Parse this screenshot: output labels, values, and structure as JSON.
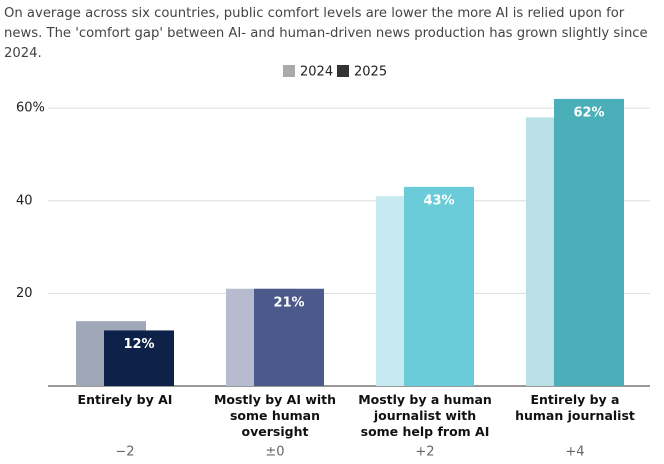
{
  "chart_data": {
    "type": "bar",
    "subtitle": "On average across six countries, public comfort levels are lower the more AI is relied upon for news. The 'comfort gap' between AI- and human-driven news production has grown slightly since 2024.",
    "categories": [
      "Entirely by AI",
      "Mostly by AI with some human oversight",
      "Mostly by a human journalist with some help from AI",
      "Entirely by a human journalist"
    ],
    "differences": [
      "−2",
      "±0",
      "+2",
      "+4"
    ],
    "series": [
      {
        "name": "2024",
        "color": "#aaaaaa",
        "bar_colors": [
          "#a0a7b6",
          "#b7bbcf",
          "#c6eaf0",
          "#b9e1e5"
        ],
        "values": [
          14,
          21,
          41,
          58
        ]
      },
      {
        "name": "2025",
        "color": "#333333",
        "bar_colors": [
          "#0e2249",
          "#4b5a8b",
          "#6accd8",
          "#4aafb8"
        ],
        "values": [
          12,
          21,
          43,
          62
        ],
        "value_labels": [
          "12%",
          "21%",
          "43%",
          "62%"
        ]
      }
    ],
    "ylim": [
      0,
      65
    ],
    "yticks": [
      20,
      40,
      {
        "value": 60,
        "label": "60%"
      }
    ],
    "grid": true
  }
}
